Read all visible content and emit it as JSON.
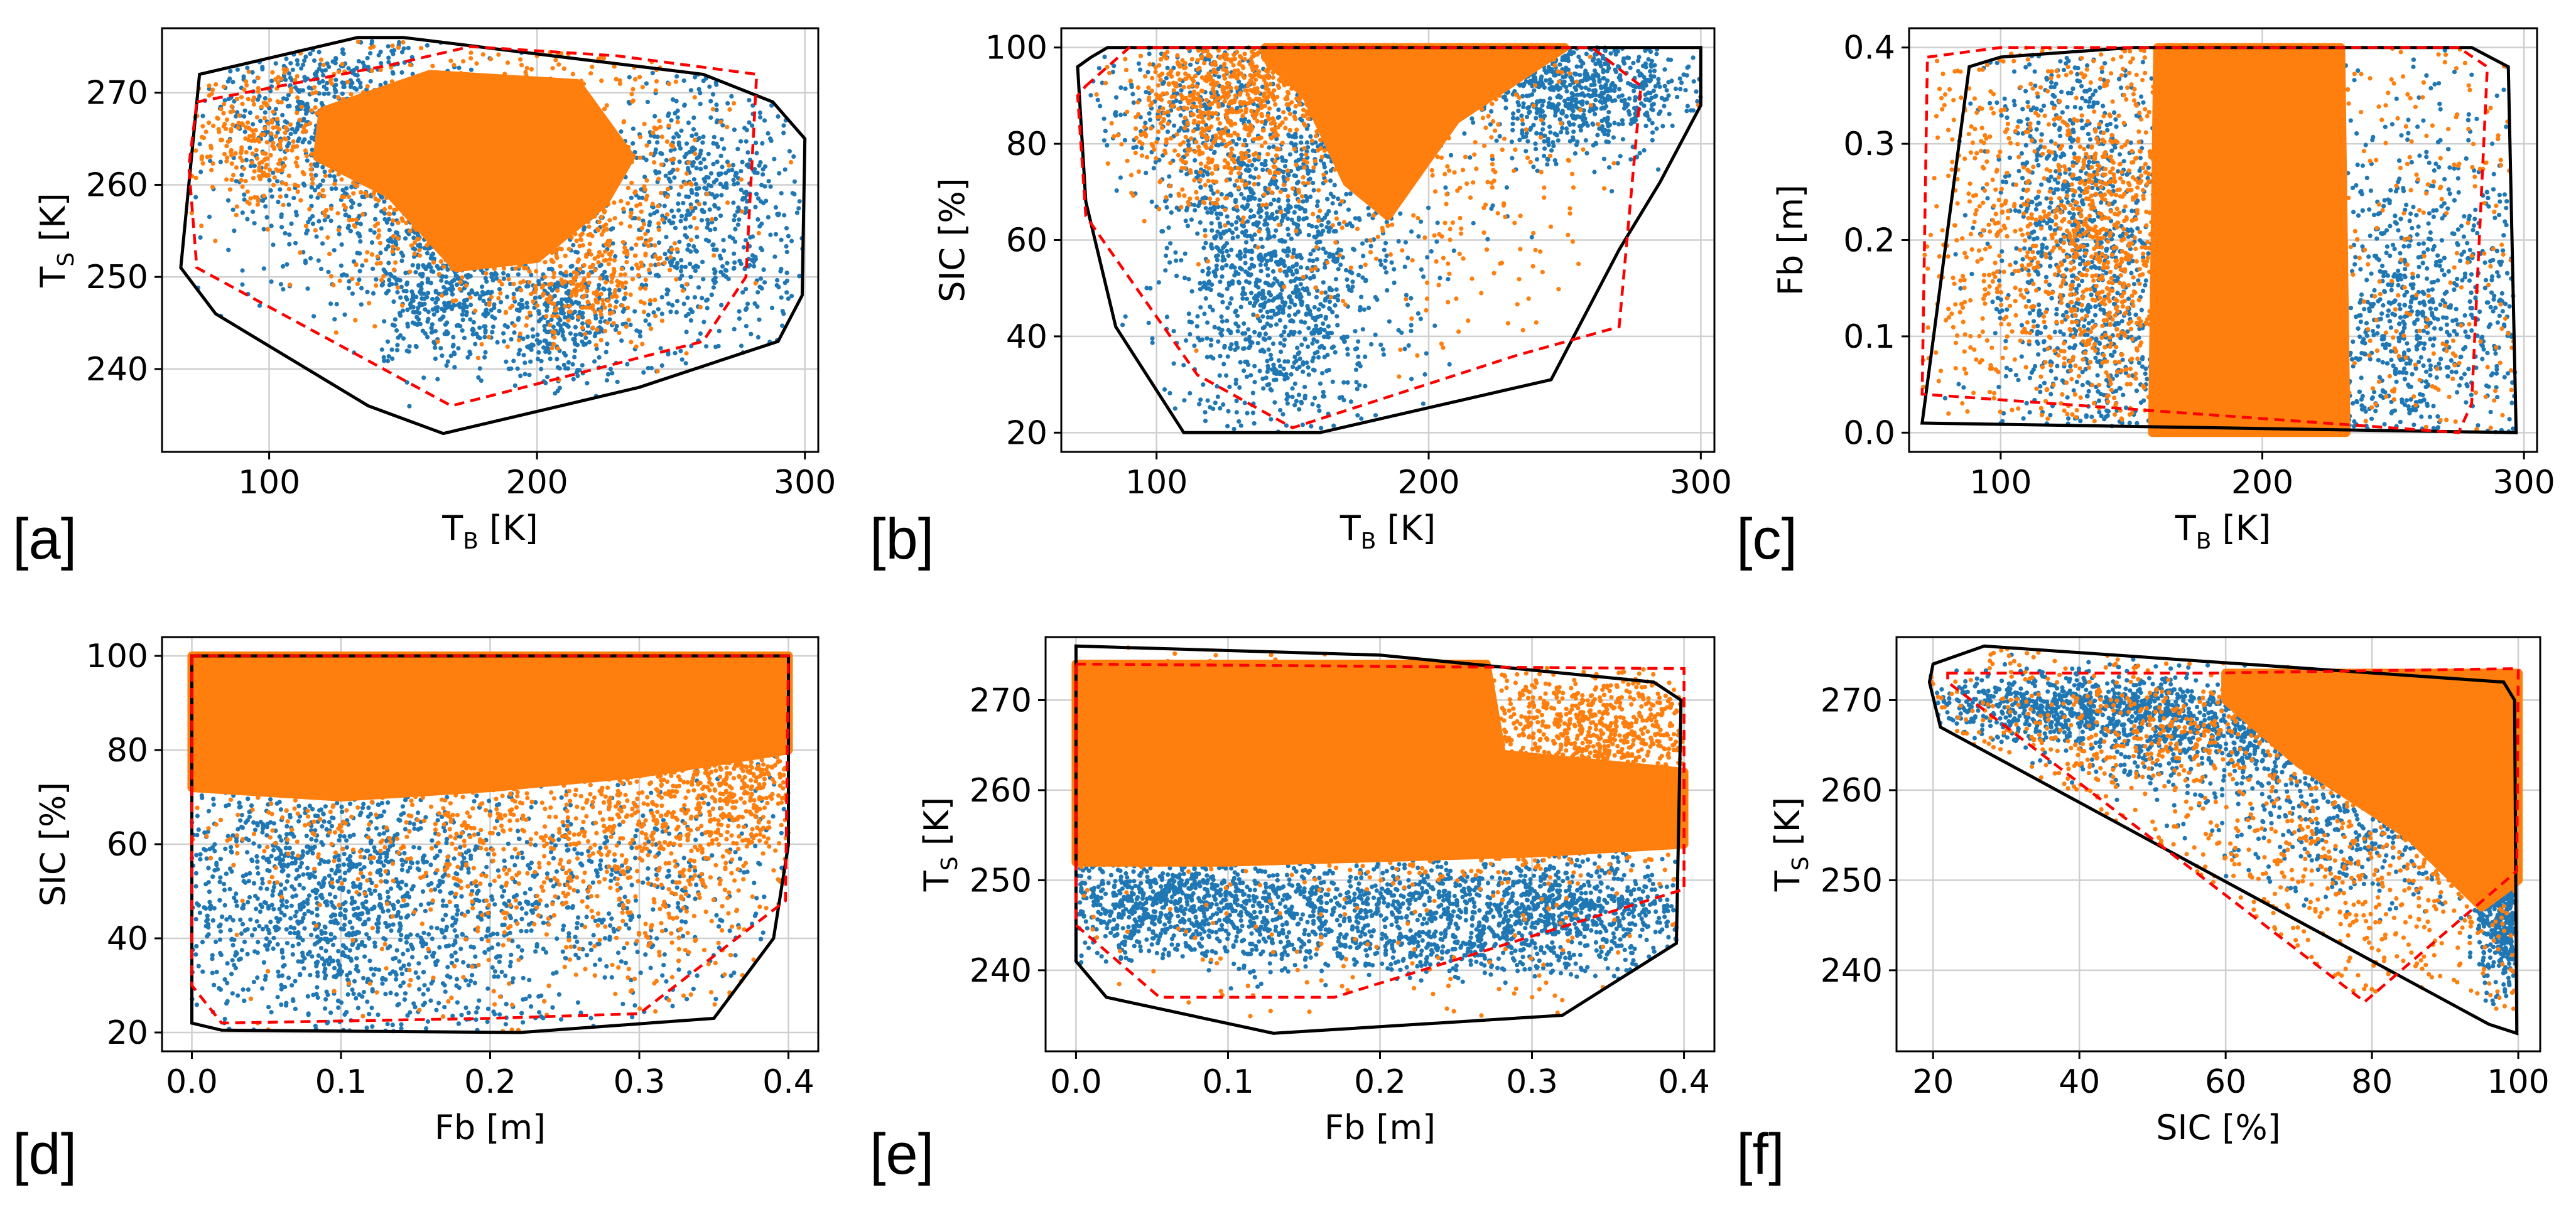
{
  "colors": {
    "series_blue": "#1f77b4",
    "series_orange": "#ff7f0e",
    "hull_black": "#000000",
    "hull_red": "#ff0000",
    "grid": "#cfcfcf"
  },
  "chart_data": [
    {
      "panel_label": "[a]",
      "type": "scatter",
      "xlabel": "T",
      "xlabel_sub": "B",
      "xlabel_unit": " [K]",
      "ylabel": "T",
      "ylabel_sub": "S",
      "ylabel_unit": " [K]",
      "xlim": [
        60,
        305
      ],
      "ylim": [
        231,
        277
      ],
      "xticks": [
        100,
        200,
        300
      ],
      "yticks": [
        240,
        250,
        260,
        270
      ],
      "grid": true,
      "hull_black": [
        [
          133,
          276
        ],
        [
          150,
          276
        ],
        [
          262,
          272
        ],
        [
          288,
          269
        ],
        [
          300,
          265
        ],
        [
          299,
          248
        ],
        [
          290,
          243
        ],
        [
          238,
          238
        ],
        [
          165,
          233
        ],
        [
          137,
          236
        ],
        [
          80,
          246
        ],
        [
          67,
          251
        ],
        [
          74,
          272
        ]
      ],
      "hull_red": [
        [
          73,
          269
        ],
        [
          145,
          273
        ],
        [
          175,
          275
        ],
        [
          230,
          274
        ],
        [
          282,
          272
        ],
        [
          278,
          250
        ],
        [
          262,
          243
        ],
        [
          168,
          236
        ],
        [
          73,
          251
        ],
        [
          70,
          262
        ]
      ],
      "blue_clusters": [
        [
          125,
          268,
          25,
          5,
          0.25
        ],
        [
          150,
          258,
          30,
          6,
          0.2
        ],
        [
          165,
          248,
          12,
          4,
          0.15
        ],
        [
          210,
          246,
          12,
          4,
          0.15
        ],
        [
          262,
          257,
          20,
          8,
          0.3
        ],
        [
          110,
          262,
          30,
          8,
          0.1
        ],
        [
          190,
          240,
          40,
          4,
          0.05
        ]
      ],
      "orange_core": [
        [
          120,
          268
        ],
        [
          160,
          272
        ],
        [
          215,
          271
        ],
        [
          235,
          263
        ],
        [
          225,
          258
        ],
        [
          200,
          252
        ],
        [
          170,
          251
        ],
        [
          145,
          259
        ],
        [
          118,
          263
        ]
      ],
      "orange_clusters": [
        [
          95,
          265,
          15,
          4,
          0.15
        ],
        [
          220,
          250,
          15,
          4,
          0.15
        ],
        [
          185,
          262,
          35,
          7,
          0.7
        ]
      ]
    },
    {
      "panel_label": "[b]",
      "type": "scatter",
      "xlabel": "T",
      "xlabel_sub": "B",
      "xlabel_unit": " [K]",
      "ylabel": "SIC [%]",
      "ylabel_sub": "",
      "ylabel_unit": "",
      "xlim": [
        65,
        305
      ],
      "ylim": [
        16,
        104
      ],
      "xticks": [
        100,
        200,
        300
      ],
      "yticks": [
        20,
        40,
        60,
        80,
        100
      ],
      "grid": true,
      "hull_black": [
        [
          76,
          98
        ],
        [
          82,
          100
        ],
        [
          300,
          100
        ],
        [
          300,
          88
        ],
        [
          285,
          72
        ],
        [
          270,
          58
        ],
        [
          245,
          31
        ],
        [
          160,
          20
        ],
        [
          110,
          20
        ],
        [
          85,
          42
        ],
        [
          74,
          68
        ],
        [
          71,
          96
        ]
      ],
      "hull_red": [
        [
          74,
          92
        ],
        [
          90,
          100
        ],
        [
          260,
          100
        ],
        [
          278,
          92
        ],
        [
          270,
          42
        ],
        [
          232,
          36
        ],
        [
          150,
          21
        ],
        [
          115,
          32
        ],
        [
          74,
          65
        ],
        [
          71,
          90
        ]
      ],
      "blue_clusters": [
        [
          140,
          60,
          18,
          18,
          0.35
        ],
        [
          150,
          40,
          22,
          14,
          0.15
        ],
        [
          255,
          92,
          20,
          7,
          0.35
        ],
        [
          110,
          90,
          20,
          8,
          0.1
        ],
        [
          170,
          75,
          30,
          15,
          0.05
        ]
      ],
      "orange_core": [
        [
          140,
          100
        ],
        [
          250,
          100
        ],
        [
          210,
          85
        ],
        [
          185,
          65
        ],
        [
          170,
          72
        ],
        [
          155,
          90
        ],
        [
          140,
          98
        ]
      ],
      "orange_clusters": [
        [
          125,
          85,
          18,
          10,
          0.3
        ],
        [
          200,
          70,
          30,
          15,
          0.15
        ],
        [
          170,
          95,
          30,
          5,
          0.55
        ]
      ]
    },
    {
      "panel_label": "[c]",
      "type": "scatter",
      "xlabel": "T",
      "xlabel_sub": "B",
      "xlabel_unit": " [K]",
      "ylabel": "Fb [m]",
      "ylabel_sub": "",
      "ylabel_unit": "",
      "xlim": [
        65,
        305
      ],
      "ylim": [
        -0.02,
        0.42
      ],
      "xticks": [
        100,
        200,
        300
      ],
      "yticks": [
        0.0,
        0.1,
        0.2,
        0.3,
        0.4
      ],
      "grid": true,
      "hull_black": [
        [
          88,
          0.38
        ],
        [
          100,
          0.39
        ],
        [
          150,
          0.4
        ],
        [
          280,
          0.4
        ],
        [
          294,
          0.38
        ],
        [
          297,
          0.0
        ],
        [
          70,
          0.01
        ]
      ],
      "hull_red": [
        [
          72,
          0.39
        ],
        [
          100,
          0.4
        ],
        [
          275,
          0.4
        ],
        [
          286,
          0.38
        ],
        [
          280,
          0.03
        ],
        [
          275,
          0.0
        ],
        [
          70,
          0.04
        ]
      ],
      "blue_clusters": [
        [
          135,
          0.15,
          18,
          0.12,
          0.4
        ],
        [
          255,
          0.12,
          18,
          0.1,
          0.35
        ],
        [
          120,
          0.3,
          12,
          0.08,
          0.1
        ],
        [
          290,
          0.15,
          5,
          0.12,
          0.05
        ]
      ],
      "orange_core": [
        [
          160,
          0.4
        ],
        [
          230,
          0.4
        ],
        [
          232,
          0.0
        ],
        [
          158,
          0.0
        ]
      ],
      "orange_clusters": [
        [
          140,
          0.2,
          15,
          0.1,
          0.4
        ],
        [
          95,
          0.2,
          10,
          0.1,
          0.1
        ]
      ]
    },
    {
      "panel_label": "[d]",
      "type": "scatter",
      "xlabel": "Fb [m]",
      "xlabel_sub": "",
      "xlabel_unit": "",
      "ylabel": "SIC [%]",
      "ylabel_sub": "",
      "ylabel_unit": "",
      "xlim": [
        -0.02,
        0.42
      ],
      "ylim": [
        16,
        104
      ],
      "xticks": [
        0.0,
        0.1,
        0.2,
        0.3,
        0.4
      ],
      "yticks": [
        20,
        40,
        60,
        80,
        100
      ],
      "grid": true,
      "hull_black": [
        [
          0.0,
          100
        ],
        [
          0.4,
          100
        ],
        [
          0.4,
          60
        ],
        [
          0.39,
          40
        ],
        [
          0.35,
          23
        ],
        [
          0.22,
          20
        ],
        [
          0.02,
          20.5
        ],
        [
          0.0,
          22
        ]
      ],
      "hull_red": [
        [
          0.0,
          100
        ],
        [
          0.4,
          100
        ],
        [
          0.398,
          48
        ],
        [
          0.3,
          24
        ],
        [
          0.2,
          23
        ],
        [
          0.02,
          22
        ],
        [
          0.0,
          30
        ]
      ],
      "blue_clusters": [
        [
          0.08,
          50,
          0.06,
          16,
          0.5
        ],
        [
          0.18,
          45,
          0.08,
          15,
          0.3
        ],
        [
          0.3,
          55,
          0.06,
          15,
          0.1
        ]
      ],
      "orange_core": [
        [
          0.0,
          100
        ],
        [
          0.4,
          100
        ],
        [
          0.4,
          80
        ],
        [
          0.3,
          75
        ],
        [
          0.2,
          72
        ],
        [
          0.1,
          70
        ],
        [
          0.0,
          72
        ]
      ],
      "orange_clusters": [
        [
          0.28,
          55,
          0.08,
          15,
          0.3
        ],
        [
          0.36,
          75,
          0.04,
          10,
          0.4
        ],
        [
          0.15,
          65,
          0.1,
          8,
          0.2
        ]
      ]
    },
    {
      "panel_label": "[e]",
      "type": "scatter",
      "xlabel": "Fb [m]",
      "xlabel_sub": "",
      "xlabel_unit": "",
      "ylabel": "T",
      "ylabel_sub": "S",
      "ylabel_unit": " [K]",
      "xlim": [
        -0.02,
        0.42
      ],
      "ylim": [
        231,
        277
      ],
      "xticks": [
        0.0,
        0.1,
        0.2,
        0.3,
        0.4
      ],
      "yticks": [
        240,
        250,
        260,
        270
      ],
      "grid": true,
      "hull_black": [
        [
          0.0,
          276
        ],
        [
          0.2,
          275
        ],
        [
          0.38,
          272
        ],
        [
          0.398,
          270
        ],
        [
          0.395,
          243
        ],
        [
          0.32,
          235
        ],
        [
          0.13,
          233
        ],
        [
          0.02,
          237
        ],
        [
          0.0,
          241
        ]
      ],
      "hull_red": [
        [
          0.0,
          274
        ],
        [
          0.4,
          273.5
        ],
        [
          0.4,
          249
        ],
        [
          0.17,
          237
        ],
        [
          0.055,
          237
        ],
        [
          0.0,
          245
        ]
      ],
      "blue_clusters": [
        [
          0.15,
          247,
          0.09,
          3,
          0.4
        ],
        [
          0.32,
          247,
          0.05,
          3,
          0.3
        ],
        [
          0.05,
          248,
          0.04,
          3,
          0.2
        ],
        [
          0.22,
          242,
          0.08,
          1.5,
          0.1
        ]
      ],
      "orange_core": [
        [
          0.0,
          274
        ],
        [
          0.27,
          274
        ],
        [
          0.28,
          264
        ],
        [
          0.4,
          262
        ],
        [
          0.4,
          254
        ],
        [
          0.3,
          253
        ],
        [
          0.1,
          252
        ],
        [
          0.0,
          252
        ]
      ],
      "orange_clusters": [
        [
          0.34,
          266,
          0.05,
          4,
          0.6
        ],
        [
          0.25,
          255,
          0.1,
          3,
          0.2
        ]
      ]
    },
    {
      "panel_label": "[f]",
      "type": "scatter",
      "xlabel": "SIC [%]",
      "xlabel_sub": "",
      "xlabel_unit": "",
      "ylabel": "T",
      "ylabel_sub": "S",
      "ylabel_unit": " [K]",
      "xlim": [
        15,
        103
      ],
      "ylim": [
        231,
        277
      ],
      "xticks": [
        20,
        40,
        60,
        80,
        100
      ],
      "yticks": [
        240,
        250,
        260,
        270
      ],
      "grid": true,
      "hull_black": [
        [
          20,
          274
        ],
        [
          27,
          276
        ],
        [
          98,
          272
        ],
        [
          99.5,
          270
        ],
        [
          99.8,
          233
        ],
        [
          96,
          234
        ],
        [
          21,
          267
        ],
        [
          19.5,
          272
        ]
      ],
      "hull_red": [
        [
          22,
          273
        ],
        [
          58,
          273
        ],
        [
          100,
          273.5
        ],
        [
          99.8,
          251
        ],
        [
          79,
          236.5
        ],
        [
          22,
          272
        ]
      ],
      "blue_clusters": [
        [
          40,
          269,
          12,
          2,
          0.3
        ],
        [
          60,
          266,
          10,
          3,
          0.25
        ],
        [
          80,
          258,
          10,
          5,
          0.25
        ],
        [
          98,
          246,
          2,
          4,
          0.2
        ]
      ],
      "orange_core": [
        [
          60,
          273
        ],
        [
          100,
          273
        ],
        [
          100,
          250
        ],
        [
          95,
          247
        ],
        [
          85,
          255
        ],
        [
          70,
          263
        ],
        [
          60,
          270
        ]
      ],
      "orange_clusters": [
        [
          80,
          250,
          12,
          6,
          0.15
        ],
        [
          50,
          266,
          12,
          3,
          0.15
        ]
      ]
    }
  ]
}
